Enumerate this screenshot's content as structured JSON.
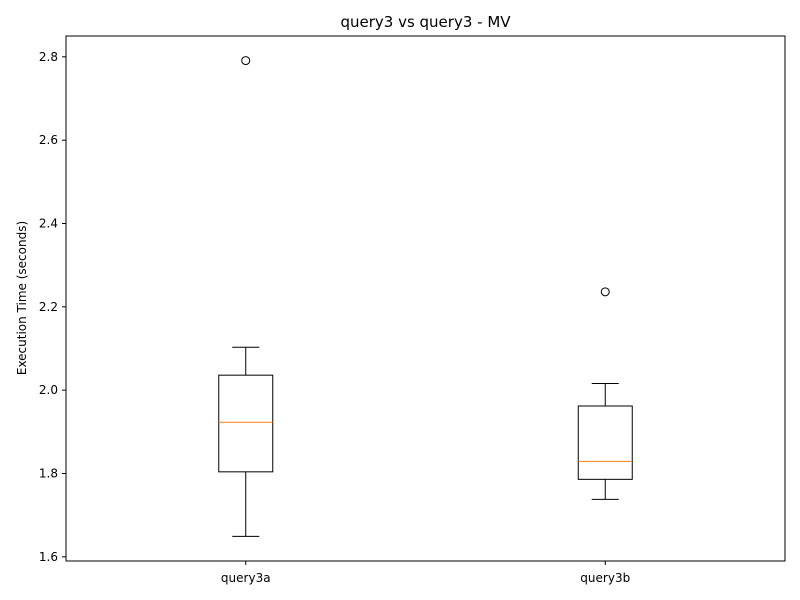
{
  "chart_data": {
    "type": "box",
    "title": "query3 vs query3 - MV",
    "xlabel": "",
    "ylabel": "Execution Time (seconds)",
    "ylim": [
      1.59,
      2.85
    ],
    "yticks": [
      1.6,
      1.8,
      2.0,
      2.2,
      2.4,
      2.6,
      2.8
    ],
    "ytick_labels": [
      "1.6",
      "1.8",
      "2.0",
      "2.2",
      "2.4",
      "2.6",
      "2.8"
    ],
    "grid": false,
    "categories": [
      "query3a",
      "query3b"
    ],
    "boxes": [
      {
        "name": "query3a",
        "whisker_low": 1.649,
        "q1": 1.804,
        "median": 1.923,
        "q3": 2.036,
        "whisker_high": 2.103,
        "outliers": [
          2.791
        ]
      },
      {
        "name": "query3b",
        "whisker_low": 1.738,
        "q1": 1.786,
        "median": 1.829,
        "q3": 1.962,
        "whisker_high": 2.016,
        "outliers": [
          2.236
        ]
      }
    ],
    "colors": {
      "box": "#000000",
      "median": "#ff7f0e",
      "background": "#ffffff"
    }
  }
}
